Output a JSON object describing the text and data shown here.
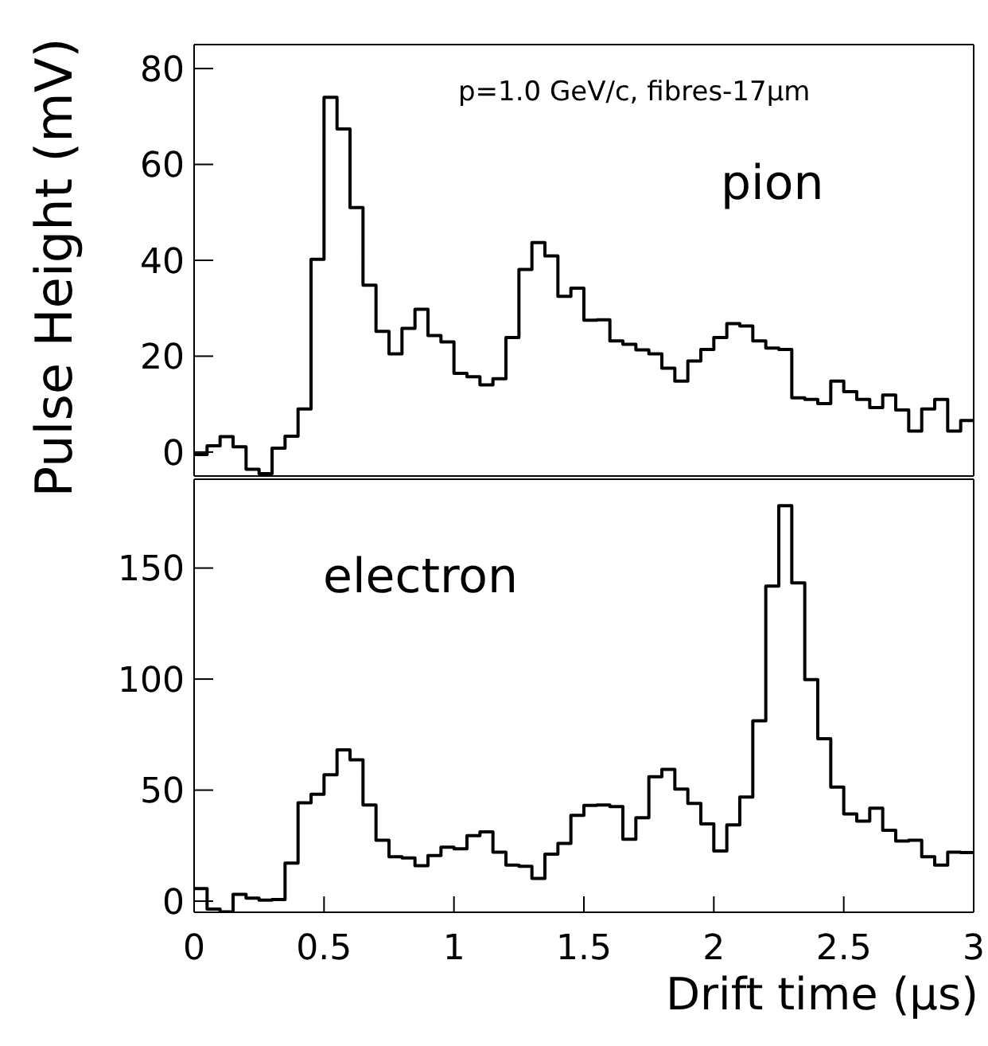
{
  "chart_data": [
    {
      "type": "histogram",
      "ylabel": "Pulse Height (mV)",
      "annotations": [
        "p=1.0 GeV/c, fibres-17μm",
        "pion"
      ],
      "color": "#000000",
      "tick_labels": "y",
      "xlim": [
        0,
        3
      ],
      "xticks": [
        0,
        0.5,
        1,
        1.5,
        2,
        2.5,
        3
      ],
      "ylim": [
        -5,
        85
      ],
      "yticks": [
        0,
        20,
        40,
        60,
        80
      ],
      "grid": false,
      "legend": false,
      "bins": [
        0,
        0.05,
        0.1,
        0.15,
        0.2,
        0.25,
        0.3,
        0.35,
        0.4,
        0.45,
        0.5,
        0.55,
        0.6,
        0.65,
        0.7,
        0.75,
        0.8,
        0.85,
        0.9,
        0.95,
        1,
        1.05,
        1.1,
        1.15,
        1.2,
        1.25,
        1.3,
        1.35,
        1.4,
        1.45,
        1.5,
        1.55,
        1.6,
        1.65,
        1.7,
        1.75,
        1.8,
        1.85,
        1.9,
        1.95,
        2,
        2.05,
        2.1,
        2.15,
        2.2,
        2.25,
        2.3,
        2.35,
        2.4,
        2.45,
        2.5,
        2.55,
        2.6,
        2.65,
        2.7,
        2.75,
        2.8,
        2.85,
        2.9,
        2.95,
        3
      ],
      "values": [
        -0.5,
        1.3,
        3.2,
        1.1,
        -3.6,
        -4.5,
        0.8,
        3.3,
        9,
        40.2,
        74,
        67.4,
        51,
        34.8,
        25.2,
        20.5,
        25.8,
        29.8,
        24.3,
        23,
        16.4,
        15.7,
        14,
        15.3,
        23.9,
        38.1,
        43.7,
        40.9,
        32.5,
        34.2,
        27.5,
        27.6,
        23.2,
        22.5,
        21.3,
        20.5,
        17.5,
        14.8,
        19,
        21.4,
        23.9,
        26.8,
        26.3,
        23.2,
        21.7,
        21.4,
        11.3,
        11,
        10.1,
        14.8,
        12.6,
        11,
        9.3,
        11.9,
        8.8,
        4.4,
        9,
        11,
        4.4,
        6.6
      ]
    },
    {
      "type": "histogram",
      "xlabel": "Drift time (μs)",
      "annotations": [
        "electron"
      ],
      "color": "#000000",
      "xlim": [
        0,
        3
      ],
      "xticks": [
        0,
        0.5,
        1,
        1.5,
        2,
        2.5,
        3
      ],
      "ylim": [
        -5,
        190
      ],
      "yticks": [
        0,
        50,
        100,
        150
      ],
      "grid": false,
      "legend": false,
      "bins": [
        0,
        0.05,
        0.1,
        0.15,
        0.2,
        0.25,
        0.3,
        0.35,
        0.4,
        0.45,
        0.5,
        0.55,
        0.6,
        0.65,
        0.7,
        0.75,
        0.8,
        0.85,
        0.9,
        0.95,
        1,
        1.05,
        1.1,
        1.15,
        1.2,
        1.25,
        1.3,
        1.35,
        1.4,
        1.45,
        1.5,
        1.55,
        1.6,
        1.65,
        1.7,
        1.75,
        1.8,
        1.85,
        1.9,
        1.95,
        2,
        2.05,
        2.1,
        2.15,
        2.2,
        2.25,
        2.3,
        2.35,
        2.4,
        2.45,
        2.5,
        2.55,
        2.6,
        2.65,
        2.7,
        2.75,
        2.8,
        2.85,
        2.9,
        2.95,
        3
      ],
      "values": [
        5.7,
        -3.6,
        -4.8,
        3.1,
        1.4,
        0.5,
        0.7,
        17.1,
        44.3,
        48.1,
        56.9,
        68.1,
        63.6,
        43.3,
        27.4,
        20,
        19.5,
        16,
        20.5,
        24.3,
        23.6,
        29.5,
        31.2,
        22.1,
        16.2,
        15.7,
        10.2,
        21.2,
        26,
        38.6,
        43.1,
        43.3,
        42.6,
        27.9,
        37.6,
        56,
        59.3,
        50.5,
        44,
        34.8,
        22.6,
        34.3,
        46.9,
        81.2,
        141.9,
        178.1,
        143.3,
        99.8,
        73.1,
        51.4,
        39.3,
        36,
        41.9,
        31.9,
        27.1,
        27.4,
        20,
        16.2,
        22.1,
        21.9
      ]
    }
  ]
}
